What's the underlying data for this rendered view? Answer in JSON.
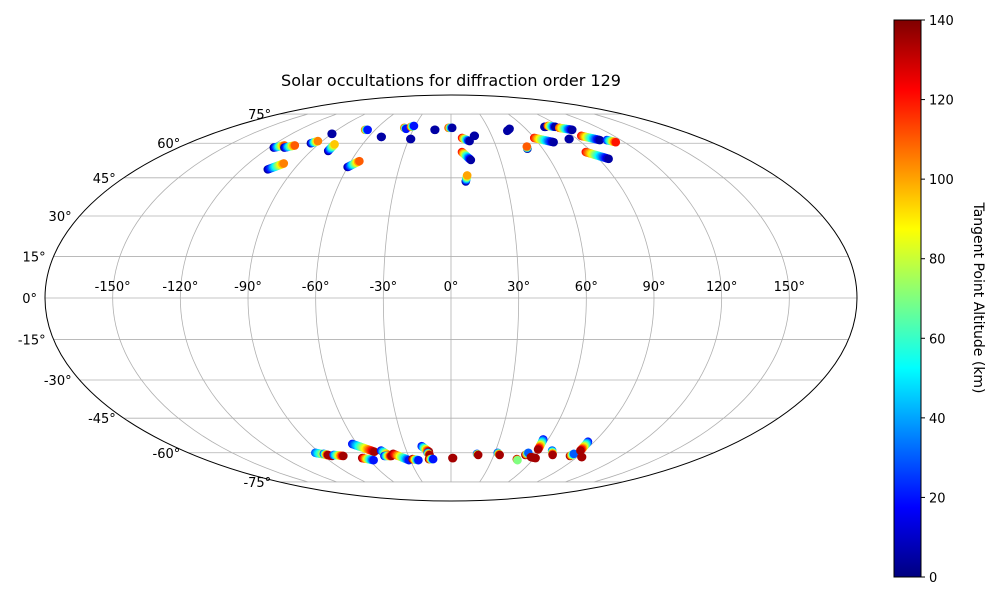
{
  "chart_data": {
    "type": "scatter",
    "projection": "mollweide",
    "title": "Solar occultations for diffraction order 129",
    "lon_ticks": [
      -150,
      -120,
      -90,
      -60,
      -30,
      0,
      30,
      60,
      90,
      120,
      150
    ],
    "lat_ticks": [
      -75,
      -60,
      -45,
      -30,
      -15,
      0,
      15,
      30,
      45,
      60,
      75
    ],
    "lon_tick_labels": [
      "-150°",
      "-120°",
      "-90°",
      "-60°",
      "-30°",
      "0°",
      "30°",
      "60°",
      "90°",
      "120°",
      "150°"
    ],
    "lat_tick_labels": [
      "-75°",
      "-60°",
      "-45°",
      "-30°",
      "-15°",
      "0°",
      "15°",
      "30°",
      "45°",
      "60°",
      "75°"
    ],
    "grid": true,
    "colorbar": {
      "label": "Tangent Point Altitude (km)",
      "range": [
        0,
        140
      ],
      "ticks": [
        0,
        20,
        40,
        60,
        80,
        100,
        120,
        140
      ],
      "tick_labels": [
        "0",
        "20",
        "40",
        "60",
        "80",
        "100",
        "120",
        "140"
      ],
      "colormap": "jet"
    },
    "tracks": [
      {
        "lon0": -117,
        "lat0": 58.0,
        "lon1": -112,
        "lat1": 59.0,
        "alt0": 5,
        "alt1": 110
      },
      {
        "lon0": -110,
        "lat0": 58.0,
        "lon1": -105,
        "lat1": 59.0,
        "alt0": 5,
        "alt1": 110
      },
      {
        "lon0": -105,
        "lat0": 48.5,
        "lon1": -99,
        "lat1": 51.0,
        "alt0": 5,
        "alt1": 105
      },
      {
        "lon0": -96,
        "lat0": 60.0,
        "lon1": -93,
        "lat1": 61.0,
        "alt0": 5,
        "alt1": 105
      },
      {
        "lon0": -90,
        "lat0": 64.5,
        "lon1": -89.5,
        "lat1": 64.5,
        "alt0": 5,
        "alt1": 5
      },
      {
        "lon0": -79,
        "lat0": 56.5,
        "lon1": -79,
        "lat1": 59.5,
        "alt0": 5,
        "alt1": 95
      },
      {
        "lon0": -68,
        "lat0": 66.5,
        "lon1": -66,
        "lat1": 66.5,
        "alt0": 105,
        "alt1": 20
      },
      {
        "lon0": -60,
        "lat0": 49.5,
        "lon1": -55,
        "lat1": 52.0,
        "alt0": 5,
        "alt1": 110
      },
      {
        "lon0": -51,
        "lat0": 63.0,
        "lon1": -50.5,
        "lat1": 63.0,
        "alt0": 5,
        "alt1": 5
      },
      {
        "lon0": -38,
        "lat0": 67.5,
        "lon1": -36,
        "lat1": 67.0,
        "alt0": 105,
        "alt1": 20
      },
      {
        "lon0": -33,
        "lat0": 68.0,
        "lon1": -31,
        "lat1": 68.5,
        "alt0": 110,
        "alt1": 20
      },
      {
        "lon0": -29,
        "lat0": 62.0,
        "lon1": -28.5,
        "lat1": 62.0,
        "alt0": 5,
        "alt1": 5
      },
      {
        "lon0": -13,
        "lat0": 66.5,
        "lon1": -12.5,
        "lat1": 66.5,
        "alt0": 5,
        "alt1": 5
      },
      {
        "lon0": -2,
        "lat0": 67.5,
        "lon1": 1,
        "lat1": 67.5,
        "alt0": 110,
        "alt1": 5
      },
      {
        "lon0": 8,
        "lat0": 62.5,
        "lon1": 13,
        "lat1": 61.0,
        "alt0": 120,
        "alt1": 5
      },
      {
        "lon0": 7,
        "lat0": 56.0,
        "lon1": 12,
        "lat1": 52.5,
        "alt0": 120,
        "alt1": 5
      },
      {
        "lon0": 8,
        "lat0": 43.5,
        "lon1": 9,
        "lat1": 46.0,
        "alt0": 5,
        "alt1": 100
      },
      {
        "lon0": 17,
        "lat0": 63.5,
        "lon1": 17.5,
        "lat1": 63.5,
        "alt0": 5,
        "alt1": 5
      },
      {
        "lon0": 44,
        "lat0": 66.0,
        "lon1": 47,
        "lat1": 67.0,
        "alt0": 5,
        "alt1": 5
      },
      {
        "lon0": 50,
        "lat0": 57.5,
        "lon1": 50.5,
        "lat1": 58.5,
        "alt0": 5,
        "alt1": 110
      },
      {
        "lon0": 60,
        "lat0": 62.5,
        "lon1": 71,
        "lat1": 60.5,
        "alt0": 120,
        "alt1": 5
      },
      {
        "lon0": 77,
        "lat0": 68.0,
        "lon1": 78,
        "lat1": 68.0,
        "alt0": 5,
        "alt1": 5
      },
      {
        "lon0": 81,
        "lat0": 68.5,
        "lon1": 86,
        "lat1": 68.0,
        "alt0": 110,
        "alt1": 5
      },
      {
        "lon0": 84,
        "lat0": 62.0,
        "lon1": 84.5,
        "lat1": 62.0,
        "alt0": 5,
        "alt1": 5
      },
      {
        "lon0": 88,
        "lat0": 67.5,
        "lon1": 96,
        "lat1": 66.5,
        "alt0": 110,
        "alt1": 5
      },
      {
        "lon0": 96,
        "lat0": 63.5,
        "lon1": 105,
        "lat1": 61.5,
        "alt0": 120,
        "alt1": 5
      },
      {
        "lon0": 86,
        "lat0": 56.0,
        "lon1": 96,
        "lat1": 53.0,
        "alt0": 120,
        "alt1": 5
      },
      {
        "lon0": 110,
        "lat0": 61.5,
        "lon1": 114,
        "lat1": 60.5,
        "alt0": 20,
        "alt1": 120
      },
      {
        "lon0": -93,
        "lat0": -60.0,
        "lon1": -84,
        "lat1": -61.5,
        "alt0": 30,
        "alt1": 135
      },
      {
        "lon0": -88,
        "lat0": -60.5,
        "lon1": -86,
        "lat1": -61.0,
        "alt0": 30,
        "alt1": 135
      },
      {
        "lon0": -82,
        "lat0": -61.0,
        "lon1": -76,
        "lat1": -61.5,
        "alt0": 30,
        "alt1": 135
      },
      {
        "lon0": -64,
        "lat0": -62.5,
        "lon1": -57,
        "lat1": -63.5,
        "alt0": 135,
        "alt1": 20
      },
      {
        "lon0": -63,
        "lat0": -56.0,
        "lon1": -52,
        "lat1": -59.5,
        "alt0": 20,
        "alt1": 135
      },
      {
        "lon0": -47,
        "lat0": -59.0,
        "lon1": -43,
        "lat1": -61.5,
        "alt0": 20,
        "alt1": 135
      },
      {
        "lon0": -47,
        "lat0": -61.5,
        "lon1": -42,
        "lat1": -61.5,
        "alt0": 20,
        "alt1": 135
      },
      {
        "lon0": -40,
        "lat0": -60.5,
        "lon1": -31,
        "lat1": -63.5,
        "alt0": 135,
        "alt1": 20
      },
      {
        "lon0": -28,
        "lat0": -63.0,
        "lon1": -24,
        "lat1": -63.5,
        "alt0": 135,
        "alt1": 20
      },
      {
        "lon0": -19,
        "lat0": -57.0,
        "lon1": -15,
        "lat1": -59.5,
        "alt0": 20,
        "alt1": 135
      },
      {
        "lon0": -16,
        "lat0": -60.0,
        "lon1": -15,
        "lat1": -61.0,
        "alt0": 30,
        "alt1": 135
      },
      {
        "lon0": -16,
        "lat0": -63.0,
        "lon1": -13,
        "lat1": -63.0,
        "alt0": 135,
        "alt1": 20
      },
      {
        "lon0": 1,
        "lat0": -62.5,
        "lon1": 1.5,
        "lat1": -62.5,
        "alt0": 135,
        "alt1": 135
      },
      {
        "lon0": 18,
        "lat0": -60.5,
        "lon1": 19,
        "lat1": -61.0,
        "alt0": 30,
        "alt1": 135
      },
      {
        "lon0": 32,
        "lat0": -60.0,
        "lon1": 34,
        "lat1": -61.0,
        "alt0": 30,
        "alt1": 135
      },
      {
        "lon0": 48,
        "lat0": -63.0,
        "lon1": 49,
        "lat1": -63.5,
        "alt0": 135,
        "alt1": 70
      },
      {
        "lon0": 52,
        "lat0": -61.0,
        "lon1": 53,
        "lat1": -60.0,
        "alt0": 135,
        "alt1": 30
      },
      {
        "lon0": 57,
        "lat0": -54.0,
        "lon1": 58,
        "lat1": -58.5,
        "alt0": 20,
        "alt1": 135
      },
      {
        "lon0": 57,
        "lat0": -62.0,
        "lon1": 61,
        "lat1": -62.5,
        "alt0": 135,
        "alt1": 135
      },
      {
        "lon0": 68,
        "lat0": -59.0,
        "lon1": 71,
        "lat1": -61.0,
        "alt0": 30,
        "alt1": 135
      },
      {
        "lon0": 84,
        "lat0": -61.5,
        "lon1": 85,
        "lat1": -60.5,
        "alt0": 135,
        "alt1": 30
      },
      {
        "lon0": 86,
        "lat0": -55.0,
        "lon1": 87,
        "lat1": -59.0,
        "alt0": 20,
        "alt1": 135
      },
      {
        "lon0": 93,
        "lat0": -62.0,
        "lon1": 93.5,
        "lat1": -62.0,
        "alt0": 135,
        "alt1": 135
      }
    ]
  }
}
